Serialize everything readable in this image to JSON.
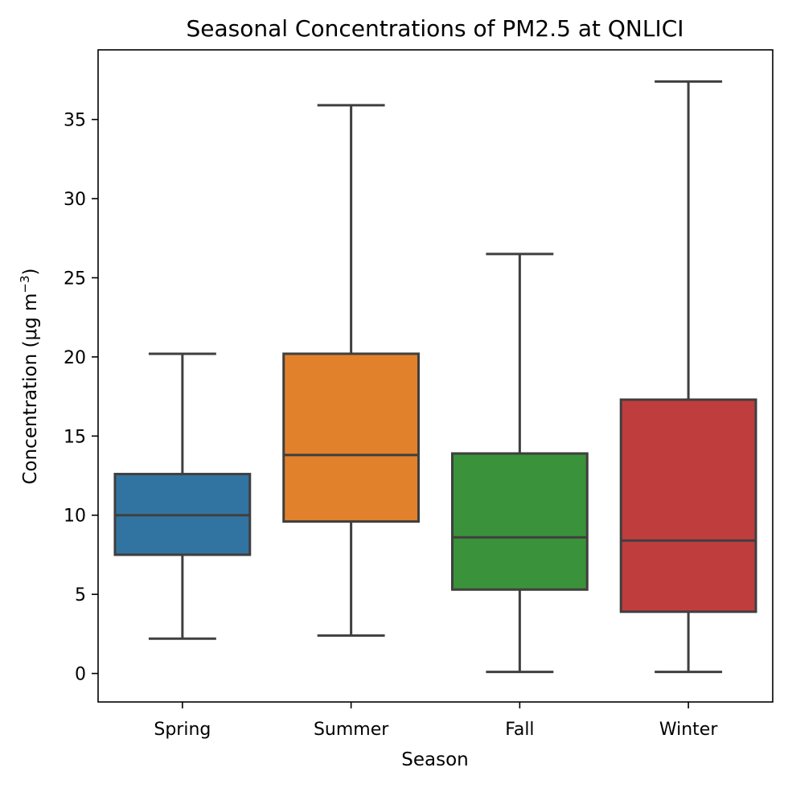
{
  "chart_data": {
    "type": "box",
    "title": "Seasonal Concentrations of PM2.5 at QNLICI",
    "xlabel": "Season",
    "ylabel_main": "Concentration (μg m",
    "ylabel_sup": "−3",
    "ylabel_close": ")",
    "ylim": [
      -1.8,
      39.4
    ],
    "yticks": [
      0,
      5,
      10,
      15,
      20,
      25,
      30,
      35
    ],
    "categories": [
      "Spring",
      "Summer",
      "Fall",
      "Winter"
    ],
    "boxes": [
      {
        "name": "Spring",
        "color": "#3274A1",
        "whisker_low": 2.2,
        "q1": 7.5,
        "median": 10.0,
        "q3": 12.6,
        "whisker_high": 20.2
      },
      {
        "name": "Summer",
        "color": "#E1812C",
        "whisker_low": 2.4,
        "q1": 9.6,
        "median": 13.8,
        "q3": 20.2,
        "whisker_high": 35.9
      },
      {
        "name": "Fall",
        "color": "#3A923A",
        "whisker_low": 0.1,
        "q1": 5.3,
        "median": 8.6,
        "q3": 13.9,
        "whisker_high": 26.5
      },
      {
        "name": "Winter",
        "color": "#C03D3E",
        "whisker_low": 0.1,
        "q1": 3.9,
        "median": 8.4,
        "q3": 17.3,
        "whisker_high": 37.4
      }
    ],
    "line_color": "#3F3F3F",
    "grid": false,
    "legend": "none"
  }
}
